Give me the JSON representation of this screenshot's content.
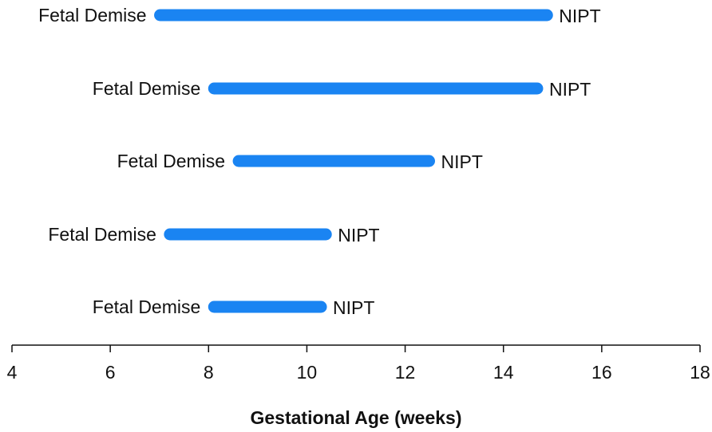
{
  "chart_data": {
    "type": "range",
    "x_label": "Gestational Age (weeks)",
    "rows": [
      {
        "start": 6.9,
        "end": 15.0,
        "start_label": "Fetal Demise",
        "end_label": "NIPT"
      },
      {
        "start": 8.0,
        "end": 14.8,
        "start_label": "Fetal Demise",
        "end_label": "NIPT"
      },
      {
        "start": 8.5,
        "end": 12.6,
        "start_label": "Fetal Demise",
        "end_label": "NIPT"
      },
      {
        "start": 7.1,
        "end": 10.5,
        "start_label": "Fetal Demise",
        "end_label": "NIPT"
      },
      {
        "start": 8.0,
        "end": 10.4,
        "start_label": "Fetal Demise",
        "end_label": "NIPT"
      }
    ],
    "color": "#1a84f2",
    "xlim": [
      4,
      18
    ],
    "xticks": [
      4,
      6,
      8,
      10,
      12,
      14,
      16,
      18
    ]
  }
}
